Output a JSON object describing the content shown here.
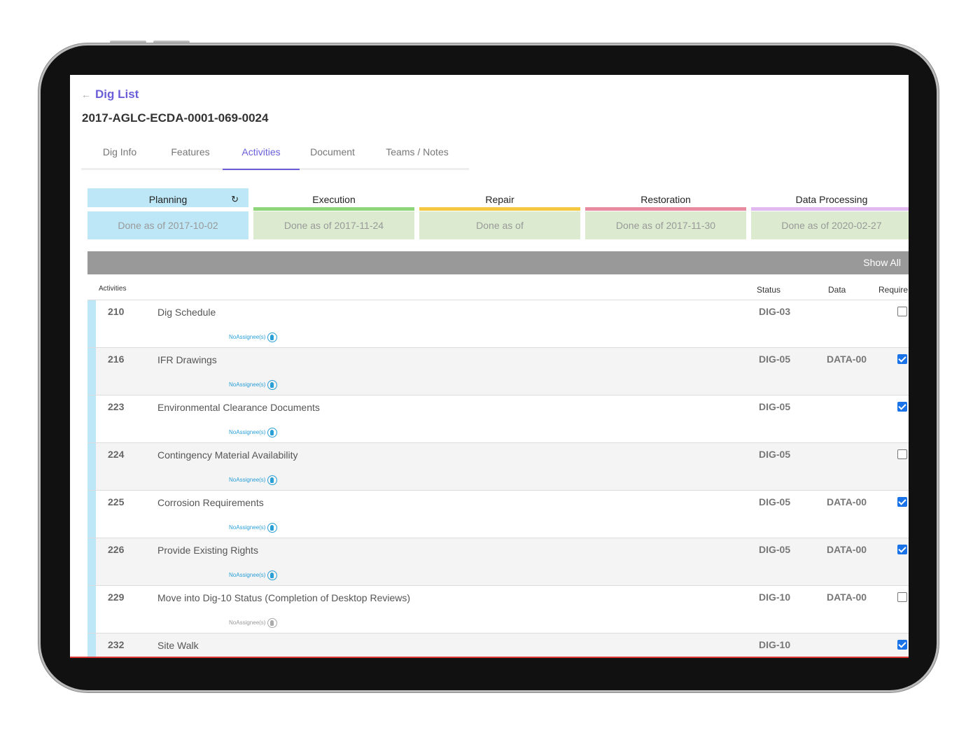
{
  "back": {
    "label": "Dig List"
  },
  "title": "2017-AGLC-ECDA-0001-069-0024",
  "tabs": [
    {
      "label": "Dig Info"
    },
    {
      "label": "Features"
    },
    {
      "label": "Activities"
    },
    {
      "label": "Document"
    },
    {
      "label": "Teams / Notes"
    }
  ],
  "active_tab": "Activities",
  "phases": [
    {
      "label": "Planning",
      "status": "Done as of 2017-10-02",
      "color": "#bde7f7"
    },
    {
      "label": "Execution",
      "status": "Done as of 2017-11-24",
      "color": "#8fd67a"
    },
    {
      "label": "Repair",
      "status": "Done as of",
      "color": "#f5c842"
    },
    {
      "label": "Restoration",
      "status": "Done as of 2017-11-30",
      "color": "#e88aa0"
    },
    {
      "label": "Data Processing",
      "status": "Done as of 2020-02-27",
      "color": "#e2b8f0"
    }
  ],
  "show_all": "Show All",
  "columns": {
    "activities": "Activities",
    "status": "Status",
    "data": "Data",
    "required": "Require"
  },
  "assignee": {
    "no": "No",
    "label": "Assignee(s)"
  },
  "rows": [
    {
      "num": "210",
      "name": "Dig Schedule",
      "status": "DIG-03",
      "data": "",
      "required": false
    },
    {
      "num": "216",
      "name": "IFR Drawings",
      "status": "DIG-05",
      "data": "DATA-00",
      "required": true
    },
    {
      "num": "223",
      "name": "Environmental Clearance Documents",
      "status": "DIG-05",
      "data": "",
      "required": true
    },
    {
      "num": "224",
      "name": "Contingency Material Availability",
      "status": "DIG-05",
      "data": "",
      "required": false
    },
    {
      "num": "225",
      "name": "Corrosion Requirements",
      "status": "DIG-05",
      "data": "DATA-00",
      "required": true
    },
    {
      "num": "226",
      "name": "Provide Existing Rights",
      "status": "DIG-05",
      "data": "DATA-00",
      "required": true
    },
    {
      "num": "229",
      "name": "Move into Dig-10 Status (Completion of Desktop Reviews)",
      "status": "DIG-10",
      "data": "DATA-00",
      "required": false
    },
    {
      "num": "232",
      "name": "Site Walk",
      "status": "DIG-10",
      "data": "",
      "required": true
    }
  ]
}
